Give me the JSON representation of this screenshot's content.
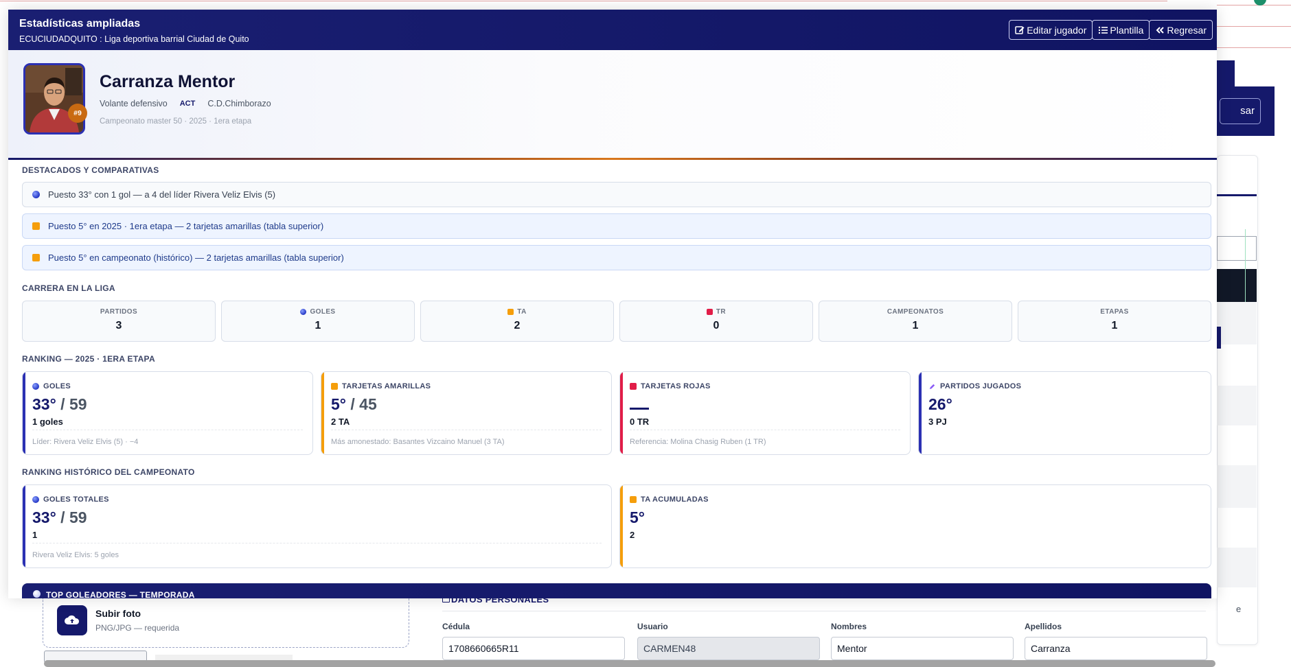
{
  "background": {
    "upload_title": "Subir foto",
    "upload_sub": "PNG/JPG — requerida",
    "personal_header": "DATOS PERSONALES",
    "fields": [
      {
        "label": "Cédula",
        "value": "1708660665R11",
        "readonly": false
      },
      {
        "label": "Usuario",
        "value": "CARMEN48",
        "readonly": true
      },
      {
        "label": "Nombres",
        "value": "Mentor",
        "readonly": false
      },
      {
        "label": "Apellidos",
        "value": "Carranza",
        "readonly": false
      }
    ],
    "right_btn_partial": "sar",
    "right_text_partial": "e"
  },
  "modal": {
    "title": "Estadísticas ampliadas",
    "subtitle": "ECUCIUDADQUITO : Liga deportiva barrial Ciudad de Quito",
    "buttons": {
      "edit": "Editar jugador",
      "roster": "Plantilla",
      "back": "Regresar"
    }
  },
  "player": {
    "number": "#9",
    "name": "Carranza Mentor",
    "position": "Volante defensivo",
    "status": "ACT",
    "club": "C.D.Chimborazo",
    "competition": "Campeonato master 50 · 2025 · 1era etapa"
  },
  "highlights": {
    "title": "DESTACADOS Y COMPARATIVAS",
    "items": [
      {
        "icon": "ball-icon",
        "text": "Puesto 33° con 1 gol — a 4 del líder Rivera Veliz Elvis (5)"
      },
      {
        "icon": "yellow-card-icon",
        "text": "Puesto 5° en 2025 · 1era etapa — 2 tarjetas amarillas (tabla superior)"
      },
      {
        "icon": "yellow-card-icon",
        "text": "Puesto 5° en campeonato (histórico) — 2 tarjetas amarillas (tabla superior)"
      }
    ]
  },
  "career": {
    "title": "CARRERA EN LA LIGA",
    "stats": [
      {
        "label": "PARTIDOS",
        "value": "3",
        "icon": ""
      },
      {
        "label": "GOLES",
        "value": "1",
        "icon": "ball-icon"
      },
      {
        "label": "TA",
        "value": "2",
        "icon": "yellow-card-icon"
      },
      {
        "label": "TR",
        "value": "0",
        "icon": "red-card-icon"
      },
      {
        "label": "CAMPEONATOS",
        "value": "1",
        "icon": ""
      },
      {
        "label": "ETAPAS",
        "value": "1",
        "icon": ""
      }
    ]
  },
  "ranking": {
    "title": "RANKING — 2025 · 1ERA ETAPA",
    "cards": [
      {
        "label": "GOLES",
        "position": "33°",
        "total": " / 59",
        "detail": "1 goles",
        "foot": "Líder: Rivera Veliz Elvis (5) · −4",
        "accent": "#2b30b3",
        "icon": "ball-icon"
      },
      {
        "label": "TARJETAS AMARILLAS",
        "position": "5°",
        "total": " / 45",
        "detail": "2 TA",
        "foot": "Más amonestado: Basantes Vizcaino Manuel (3 TA)",
        "accent": "#f59e0b",
        "icon": "yellow-card-icon"
      },
      {
        "label": "TARJETAS ROJAS",
        "position": "",
        "total": "",
        "detail": "0 TR",
        "foot": "Referencia: Molina Chasig Ruben (1 TR)",
        "accent": "#e11d48",
        "icon": "red-card-icon"
      },
      {
        "label": "PARTIDOS JUGADOS",
        "position": "26°",
        "total": "",
        "detail": "3 PJ",
        "foot": "",
        "accent": "#2b30b3",
        "icon": "pen-icon"
      }
    ]
  },
  "history": {
    "title": "RANKING HISTÓRICO DEL CAMPEONATO",
    "cards": [
      {
        "label": "GOLES TOTALES",
        "position": "33°",
        "total": " / 59",
        "detail": "1",
        "foot": "Rivera Veliz Elvis: 5 goles",
        "accent": "#2b30b3",
        "icon": "ball-icon"
      },
      {
        "label": "TA ACUMULADAS",
        "position": "5°",
        "total": "",
        "detail": "2",
        "foot": "",
        "accent": "#f59e0b",
        "icon": "yellow-card-icon"
      }
    ]
  },
  "top_scorers": {
    "title": "TOP GOLEADORES — TEMPORADA"
  }
}
